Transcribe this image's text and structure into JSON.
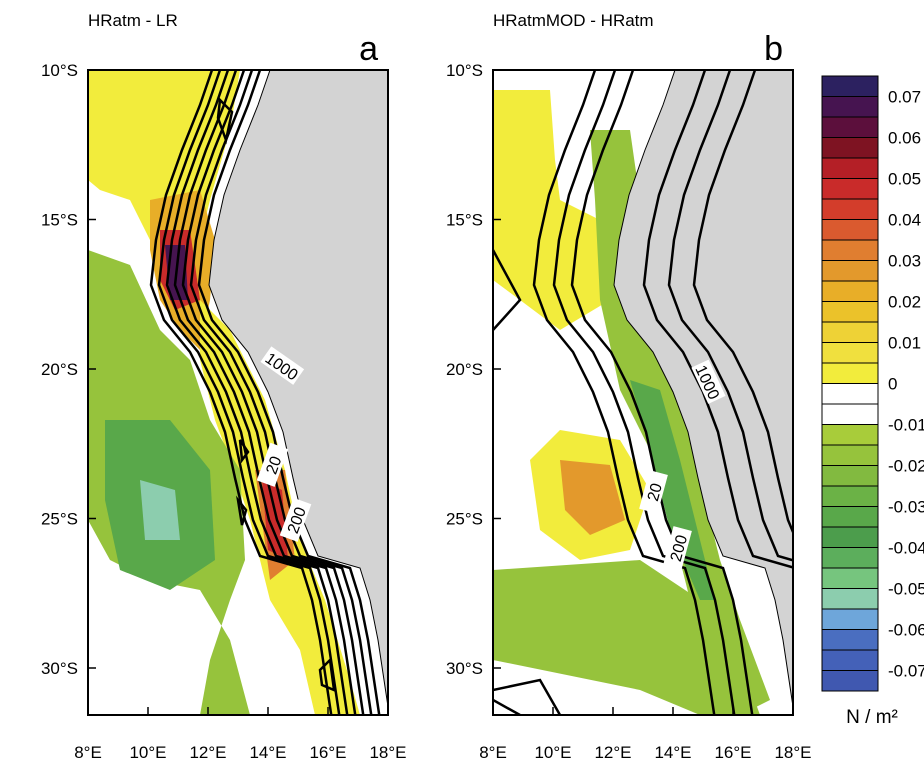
{
  "panels": [
    {
      "title": "HRatm - LR",
      "letter": "a",
      "xticks": [
        "8°E",
        "10°E",
        "12°E",
        "14°E",
        "16°E",
        "18°E"
      ],
      "yticks": [
        "10°S",
        "15°S",
        "20°S",
        "25°S",
        "30°S"
      ],
      "contour_labels": [
        "1000",
        "20",
        "200"
      ]
    },
    {
      "title": "HRatmMOD - HRatm",
      "letter": "b",
      "xticks": [
        "8°E",
        "10°E",
        "12°E",
        "14°E",
        "16°E",
        "18°E"
      ],
      "yticks": [
        "10°S",
        "15°S",
        "20°S",
        "25°S",
        "30°S"
      ],
      "contour_labels": [
        "1000",
        "20",
        "200"
      ]
    }
  ],
  "colorbar": {
    "ticks": [
      0.07,
      0.06,
      0.05,
      0.04,
      0.03,
      0.02,
      0.01,
      0,
      -0.01,
      -0.02,
      -0.03,
      -0.04,
      -0.05,
      -0.06,
      -0.07
    ],
    "unit": "N / m²",
    "colors": [
      "#2c2160",
      "#461450",
      "#5c0f3c",
      "#7e1322",
      "#b41f26",
      "#c92b2a",
      "#d33d2b",
      "#da5a2f",
      "#e07e30",
      "#e3992c",
      "#e8ae28",
      "#ebc22a",
      "#eed236",
      "#f0e03e",
      "#f2ec3c",
      "#ffffff",
      "#ffffff",
      "#a8cc3a",
      "#96c33c",
      "#82ba40",
      "#6bb246",
      "#59a84a",
      "#4c9d4c",
      "#5cae5c",
      "#76c57e",
      "#8ccdae",
      "#6ea6da",
      "#4a6ec0",
      "#4461b8",
      "#4058b0"
    ]
  }
}
